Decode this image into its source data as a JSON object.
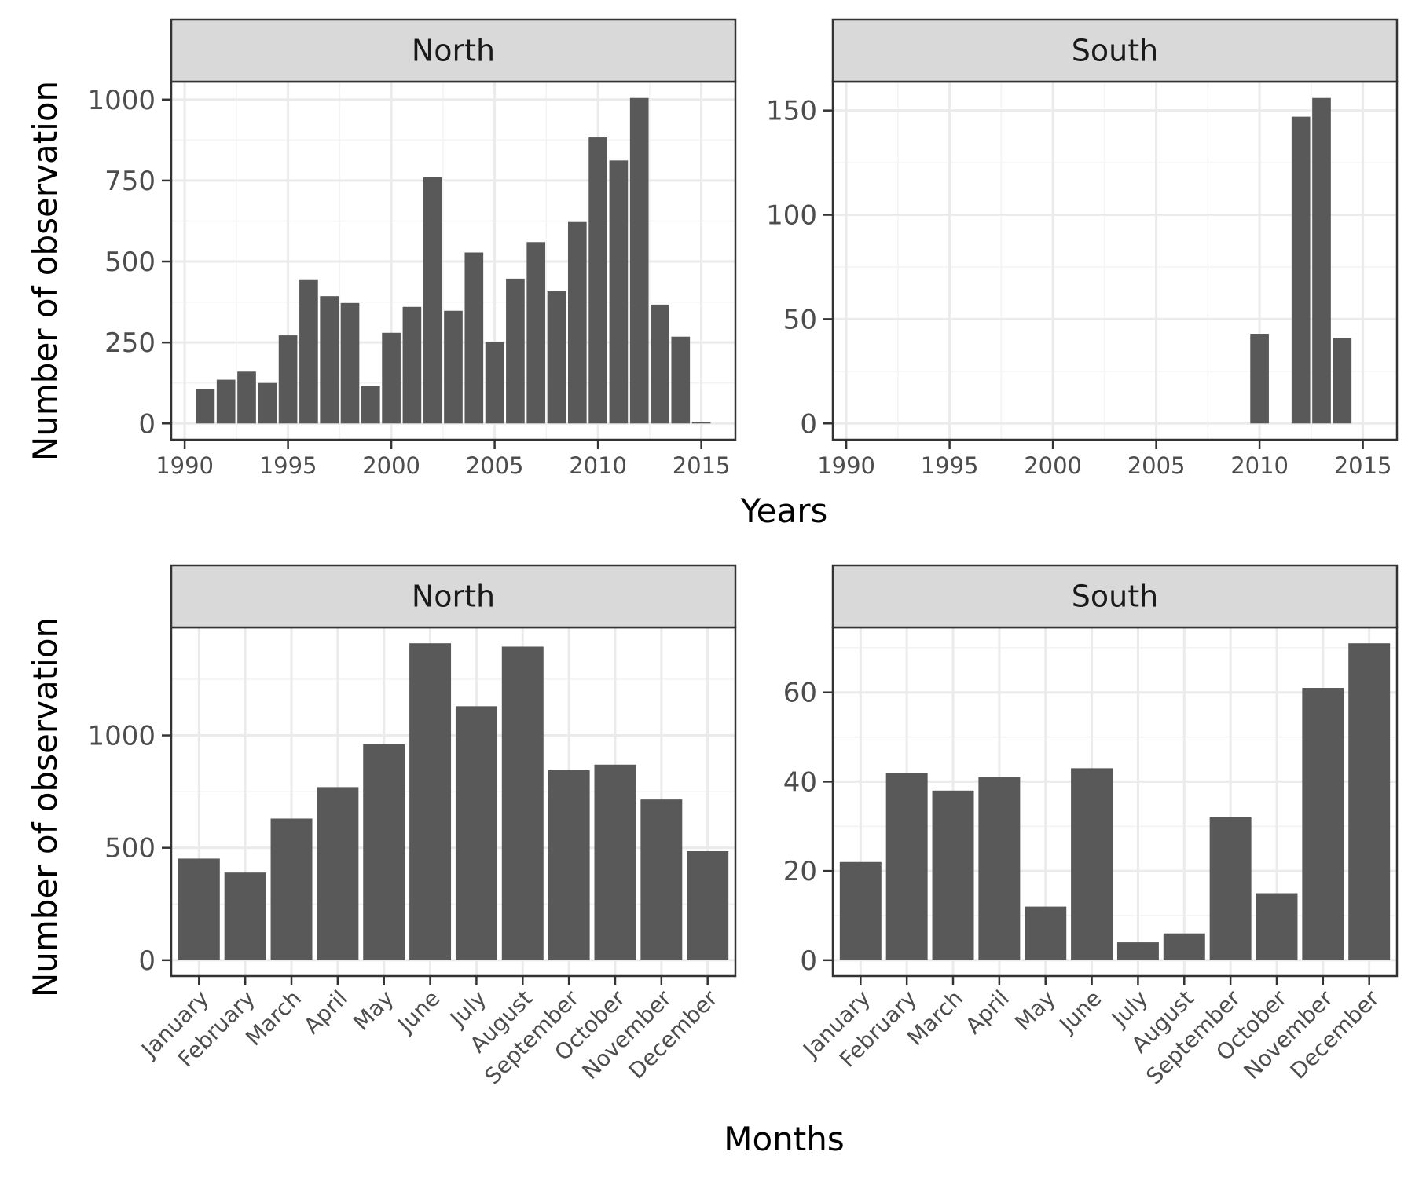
{
  "chart_data": [
    {
      "type": "bar",
      "facet": "North",
      "x": [
        1991,
        1992,
        1993,
        1994,
        1995,
        1996,
        1997,
        1998,
        1999,
        2000,
        2001,
        2002,
        2003,
        2004,
        2005,
        2006,
        2007,
        2008,
        2009,
        2010,
        2011,
        2012,
        2013,
        2014,
        2015
      ],
      "values": [
        105,
        135,
        160,
        125,
        272,
        445,
        393,
        372,
        115,
        280,
        360,
        760,
        348,
        528,
        252,
        447,
        560,
        408,
        622,
        883,
        812,
        1005,
        367,
        268,
        5
      ],
      "xlabel": "Years",
      "ylabel": "Number of observation",
      "xticks": [
        1990,
        1995,
        2000,
        2005,
        2010,
        2015
      ],
      "yticks": [
        0,
        250,
        500,
        750,
        1000
      ],
      "xlim": [
        1989.35,
        2016.65
      ],
      "ylim": [
        -50.25,
        1055.25
      ],
      "grid": true
    },
    {
      "type": "bar",
      "facet": "South",
      "x": [
        2010,
        2012,
        2013,
        2014
      ],
      "values": [
        43,
        147,
        156,
        41
      ],
      "xlabel": "Years",
      "ylabel": "Number of observation",
      "xticks": [
        1990,
        1995,
        2000,
        2005,
        2010,
        2015
      ],
      "yticks": [
        0,
        50,
        100,
        150
      ],
      "xlim": [
        1989.35,
        2016.65
      ],
      "ylim": [
        -7.8,
        163.8
      ],
      "grid": true
    },
    {
      "type": "bar",
      "facet": "North",
      "categories": [
        "January",
        "February",
        "March",
        "April",
        "May",
        "June",
        "July",
        "August",
        "September",
        "October",
        "November",
        "December"
      ],
      "values": [
        452,
        390,
        630,
        770,
        960,
        1410,
        1130,
        1395,
        845,
        870,
        715,
        485
      ],
      "xlabel": "Months",
      "ylabel": "Number of observation",
      "yticks": [
        0,
        500,
        1000
      ],
      "ylim": [
        -70.5,
        1480.5
      ],
      "grid": true
    },
    {
      "type": "bar",
      "facet": "South",
      "categories": [
        "January",
        "February",
        "March",
        "April",
        "May",
        "June",
        "July",
        "August",
        "September",
        "October",
        "November",
        "December"
      ],
      "values": [
        22,
        42,
        38,
        41,
        12,
        43,
        4,
        6,
        32,
        15,
        61,
        71
      ],
      "xlabel": "Months",
      "ylabel": "Number of observation",
      "yticks": [
        0,
        20,
        40,
        60
      ],
      "ylim": [
        -3.55,
        74.55
      ],
      "grid": true
    }
  ],
  "labels": {
    "top_ylabel": "Number of observation",
    "bottom_ylabel": "Number of observation",
    "top_xlabel": "Years",
    "bottom_xlabel": "Months"
  },
  "colors": {
    "bar": "#595959",
    "strip_fill": "#d9d9d9",
    "grid_major": "#ebebeb",
    "grid_minor": "#f3f3f3",
    "frame": "#333333",
    "tick_text": "#4d4d4d",
    "title_text": "#1a1a1a"
  }
}
